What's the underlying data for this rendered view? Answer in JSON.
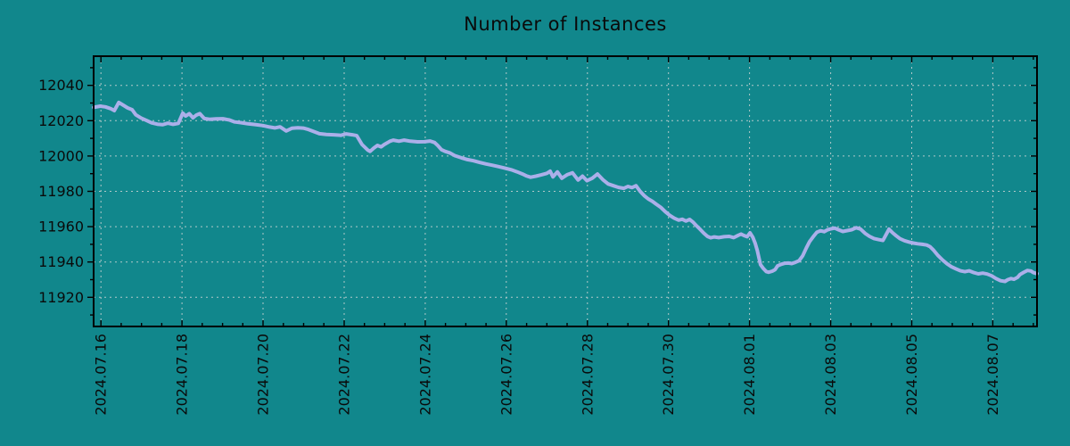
{
  "chart_data": {
    "type": "line",
    "title": "Number of Instances",
    "legend_position": "none",
    "grid": "major-dashed",
    "colors": {
      "background": "#11878c",
      "grid": "#d9d9d9",
      "axis": "#000000",
      "text": "#0a0a0a",
      "line": "#abafe9"
    },
    "x_axis": {
      "label": "",
      "unit": "date",
      "tick_labels": [
        "2024.07.16",
        "2024.07.18",
        "2024.07.20",
        "2024.07.22",
        "2024.07.24",
        "2024.07.26",
        "2024.07.28",
        "2024.07.30",
        "2024.08.01",
        "2024.08.03",
        "2024.08.05",
        "2024.08.07"
      ],
      "tick_positions_days": [
        0,
        2,
        4,
        6,
        8,
        10,
        12,
        14,
        16,
        18,
        20,
        22
      ],
      "minor_tick_interval_days": 0.5,
      "xlim_days": [
        -0.18,
        23.09
      ]
    },
    "y_axis": {
      "label": "",
      "tick_values": [
        11920,
        11940,
        11960,
        11980,
        12000,
        12020,
        12040
      ],
      "minor_tick_values": [
        11910,
        11930,
        11950,
        11970,
        11990,
        12010,
        12030,
        12050
      ],
      "ylim": [
        11903.5,
        12056.5
      ]
    },
    "series": [
      {
        "name": "Number of Instances",
        "color": "#abafe9",
        "points": [
          [
            -0.18,
            12027.5
          ],
          [
            -0.02,
            12028.2
          ],
          [
            0.11,
            12027.8
          ],
          [
            0.24,
            12026.8
          ],
          [
            0.33,
            12025.7
          ],
          [
            0.44,
            12030.3
          ],
          [
            0.55,
            12028.8
          ],
          [
            0.66,
            12027.2
          ],
          [
            0.77,
            12026.2
          ],
          [
            0.86,
            12023.3
          ],
          [
            0.99,
            12021.5
          ],
          [
            1.12,
            12020.2
          ],
          [
            1.25,
            12018.8
          ],
          [
            1.39,
            12018.0
          ],
          [
            1.52,
            12017.7
          ],
          [
            1.65,
            12018.6
          ],
          [
            1.78,
            12017.9
          ],
          [
            1.91,
            12018.5
          ],
          [
            2.02,
            12024.3
          ],
          [
            2.09,
            12022.6
          ],
          [
            2.18,
            12024.0
          ],
          [
            2.27,
            12021.6
          ],
          [
            2.35,
            12023.1
          ],
          [
            2.44,
            12024.0
          ],
          [
            2.55,
            12021.2
          ],
          [
            2.68,
            12020.8
          ],
          [
            2.84,
            12021.0
          ],
          [
            3.01,
            12021.1
          ],
          [
            3.17,
            12020.4
          ],
          [
            3.3,
            12019.3
          ],
          [
            3.45,
            12018.9
          ],
          [
            3.63,
            12018.2
          ],
          [
            3.8,
            12017.8
          ],
          [
            4.0,
            12017.2
          ],
          [
            4.16,
            12016.4
          ],
          [
            4.29,
            12015.9
          ],
          [
            4.42,
            12016.5
          ],
          [
            4.57,
            12014.2
          ],
          [
            4.71,
            12015.7
          ],
          [
            4.86,
            12016.0
          ],
          [
            4.99,
            12015.8
          ],
          [
            5.12,
            12015.0
          ],
          [
            5.26,
            12013.8
          ],
          [
            5.39,
            12012.6
          ],
          [
            5.56,
            12012.2
          ],
          [
            5.74,
            12012.0
          ],
          [
            5.92,
            12011.7
          ],
          [
            6.05,
            12012.5
          ],
          [
            6.2,
            12012.0
          ],
          [
            6.31,
            12011.5
          ],
          [
            6.44,
            12006.5
          ],
          [
            6.58,
            12003.4
          ],
          [
            6.64,
            12002.6
          ],
          [
            6.73,
            12004.5
          ],
          [
            6.82,
            12006.0
          ],
          [
            6.91,
            12005.2
          ],
          [
            6.99,
            12006.5
          ],
          [
            7.13,
            12008.4
          ],
          [
            7.21,
            12009.0
          ],
          [
            7.35,
            12008.4
          ],
          [
            7.48,
            12009.0
          ],
          [
            7.63,
            12008.4
          ],
          [
            7.81,
            12008.0
          ],
          [
            7.98,
            12008.1
          ],
          [
            8.12,
            12008.5
          ],
          [
            8.23,
            12007.6
          ],
          [
            8.31,
            12005.9
          ],
          [
            8.4,
            12003.6
          ],
          [
            8.49,
            12002.6
          ],
          [
            8.6,
            12001.8
          ],
          [
            8.73,
            12000.2
          ],
          [
            8.89,
            11999.0
          ],
          [
            9.04,
            11998.0
          ],
          [
            9.19,
            11997.3
          ],
          [
            9.35,
            11996.3
          ],
          [
            9.5,
            11995.5
          ],
          [
            9.65,
            11994.8
          ],
          [
            9.81,
            11994.0
          ],
          [
            9.96,
            11993.2
          ],
          [
            10.12,
            11992.2
          ],
          [
            10.27,
            11991.0
          ],
          [
            10.4,
            11989.8
          ],
          [
            10.49,
            11988.8
          ],
          [
            10.6,
            11988.0
          ],
          [
            10.73,
            11988.6
          ],
          [
            10.86,
            11989.3
          ],
          [
            11.0,
            11990.2
          ],
          [
            11.08,
            11991.4
          ],
          [
            11.15,
            11988.2
          ],
          [
            11.26,
            11991.0
          ],
          [
            11.37,
            11987.4
          ],
          [
            11.5,
            11989.4
          ],
          [
            11.63,
            11990.5
          ],
          [
            11.77,
            11986.4
          ],
          [
            11.88,
            11988.6
          ],
          [
            11.99,
            11986.0
          ],
          [
            12.12,
            11987.4
          ],
          [
            12.25,
            11989.8
          ],
          [
            12.38,
            11986.6
          ],
          [
            12.51,
            11984.2
          ],
          [
            12.64,
            11983.2
          ],
          [
            12.77,
            11982.2
          ],
          [
            12.9,
            11981.7
          ],
          [
            13.0,
            11982.8
          ],
          [
            13.1,
            11982.1
          ],
          [
            13.2,
            11983.2
          ],
          [
            13.3,
            11980.0
          ],
          [
            13.4,
            11977.6
          ],
          [
            13.5,
            11975.7
          ],
          [
            13.6,
            11974.4
          ],
          [
            13.7,
            11972.7
          ],
          [
            13.81,
            11970.9
          ],
          [
            13.92,
            11968.5
          ],
          [
            14.03,
            11966.4
          ],
          [
            14.14,
            11964.8
          ],
          [
            14.25,
            11963.7
          ],
          [
            14.34,
            11964.2
          ],
          [
            14.43,
            11963.2
          ],
          [
            14.52,
            11964.1
          ],
          [
            14.6,
            11962.7
          ],
          [
            14.69,
            11960.5
          ],
          [
            14.78,
            11958.5
          ],
          [
            14.87,
            11956.3
          ],
          [
            14.96,
            11954.5
          ],
          [
            15.04,
            11953.7
          ],
          [
            15.13,
            11954.2
          ],
          [
            15.24,
            11953.8
          ],
          [
            15.37,
            11954.3
          ],
          [
            15.5,
            11954.5
          ],
          [
            15.61,
            11953.8
          ],
          [
            15.72,
            11955.1
          ],
          [
            15.79,
            11955.8
          ],
          [
            15.86,
            11955.0
          ],
          [
            15.94,
            11954.3
          ],
          [
            16.01,
            11956.5
          ],
          [
            16.08,
            11954.0
          ],
          [
            16.14,
            11950.5
          ],
          [
            16.19,
            11946.5
          ],
          [
            16.23,
            11942.5
          ],
          [
            16.27,
            11938.5
          ],
          [
            16.34,
            11936.3
          ],
          [
            16.41,
            11934.6
          ],
          [
            16.47,
            11934.2
          ],
          [
            16.56,
            11934.8
          ],
          [
            16.63,
            11935.7
          ],
          [
            16.69,
            11937.8
          ],
          [
            16.78,
            11938.7
          ],
          [
            16.87,
            11939.3
          ],
          [
            16.96,
            11939.4
          ],
          [
            17.04,
            11939.1
          ],
          [
            17.13,
            11939.8
          ],
          [
            17.22,
            11940.7
          ],
          [
            17.31,
            11943.5
          ],
          [
            17.4,
            11948.0
          ],
          [
            17.48,
            11951.5
          ],
          [
            17.57,
            11954.3
          ],
          [
            17.66,
            11956.8
          ],
          [
            17.75,
            11957.7
          ],
          [
            17.84,
            11957.2
          ],
          [
            17.92,
            11958.2
          ],
          [
            18.01,
            11958.8
          ],
          [
            18.1,
            11959.2
          ],
          [
            18.19,
            11958.3
          ],
          [
            18.3,
            11957.3
          ],
          [
            18.41,
            11957.8
          ],
          [
            18.52,
            11958.3
          ],
          [
            18.63,
            11959.4
          ],
          [
            18.74,
            11958.6
          ],
          [
            18.85,
            11956.2
          ],
          [
            18.96,
            11954.5
          ],
          [
            19.07,
            11953.3
          ],
          [
            19.18,
            11952.7
          ],
          [
            19.29,
            11952.2
          ],
          [
            19.38,
            11956.0
          ],
          [
            19.44,
            11958.6
          ],
          [
            19.53,
            11956.5
          ],
          [
            19.62,
            11954.8
          ],
          [
            19.71,
            11953.2
          ],
          [
            19.82,
            11952.1
          ],
          [
            19.93,
            11951.3
          ],
          [
            20.04,
            11950.7
          ],
          [
            20.15,
            11950.3
          ],
          [
            20.26,
            11950.0
          ],
          [
            20.37,
            11949.6
          ],
          [
            20.45,
            11948.7
          ],
          [
            20.54,
            11946.6
          ],
          [
            20.65,
            11943.6
          ],
          [
            20.76,
            11941.1
          ],
          [
            20.87,
            11939.0
          ],
          [
            20.98,
            11937.3
          ],
          [
            21.09,
            11936.1
          ],
          [
            21.2,
            11935.0
          ],
          [
            21.31,
            11934.5
          ],
          [
            21.42,
            11935.0
          ],
          [
            21.53,
            11934.0
          ],
          [
            21.64,
            11933.3
          ],
          [
            21.75,
            11933.7
          ],
          [
            21.86,
            11933.2
          ],
          [
            21.97,
            11932.2
          ],
          [
            22.08,
            11930.6
          ],
          [
            22.19,
            11929.4
          ],
          [
            22.3,
            11929.0
          ],
          [
            22.37,
            11930.0
          ],
          [
            22.45,
            11930.6
          ],
          [
            22.52,
            11930.2
          ],
          [
            22.61,
            11931.3
          ],
          [
            22.67,
            11932.9
          ],
          [
            22.76,
            11934.1
          ],
          [
            22.85,
            11935.2
          ],
          [
            22.94,
            11934.9
          ],
          [
            23.0,
            11934.0
          ],
          [
            23.09,
            11933.4
          ]
        ]
      }
    ]
  }
}
